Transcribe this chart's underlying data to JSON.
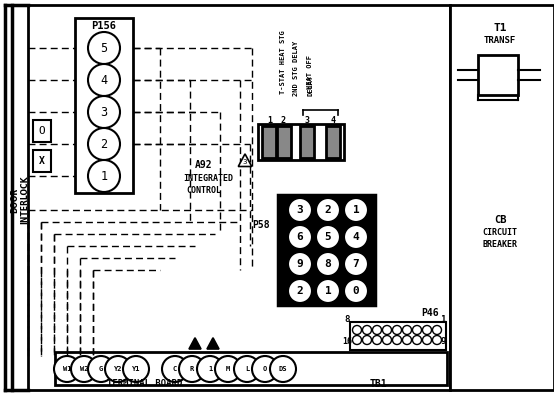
{
  "bg_color": "#ffffff",
  "line_color": "#000000",
  "fig_width": 5.54,
  "fig_height": 3.95,
  "dpi": 100,
  "p156_pins": [
    "5",
    "4",
    "3",
    "2",
    "1"
  ],
  "p58_grid": [
    [
      "3",
      "2",
      "1"
    ],
    [
      "6",
      "5",
      "4"
    ],
    [
      "9",
      "8",
      "7"
    ],
    [
      "2",
      "1",
      "0"
    ]
  ],
  "tb_labels": [
    "W1",
    "W2",
    "G",
    "Y2",
    "Y1",
    "C",
    "R",
    "1",
    "M",
    "L",
    "O",
    "DS"
  ]
}
